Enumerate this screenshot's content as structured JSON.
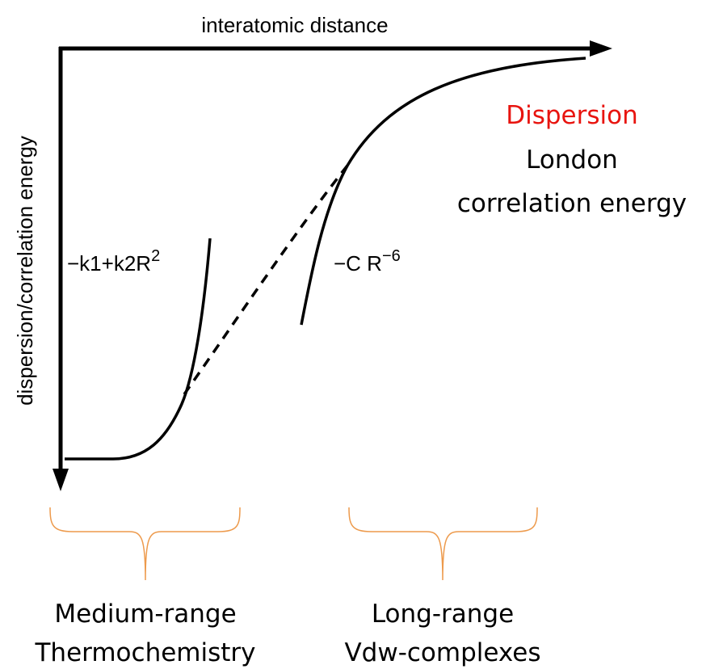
{
  "axes": {
    "x_label": "interatomic distance",
    "y_label": "dispersion/correlation energy"
  },
  "formulas": [
    {
      "base": "−k1+k2R",
      "exponent": "2"
    },
    {
      "base": "−C R",
      "exponent": "−6"
    }
  ],
  "dispersion": {
    "title": "Dispersion",
    "lines": [
      "London",
      "correlation energy"
    ]
  },
  "ranges": [
    {
      "lines": [
        "Medium-range",
        "Thermochemistry"
      ]
    },
    {
      "lines": [
        "Long-range",
        "Vdw-complexes"
      ]
    }
  ]
}
